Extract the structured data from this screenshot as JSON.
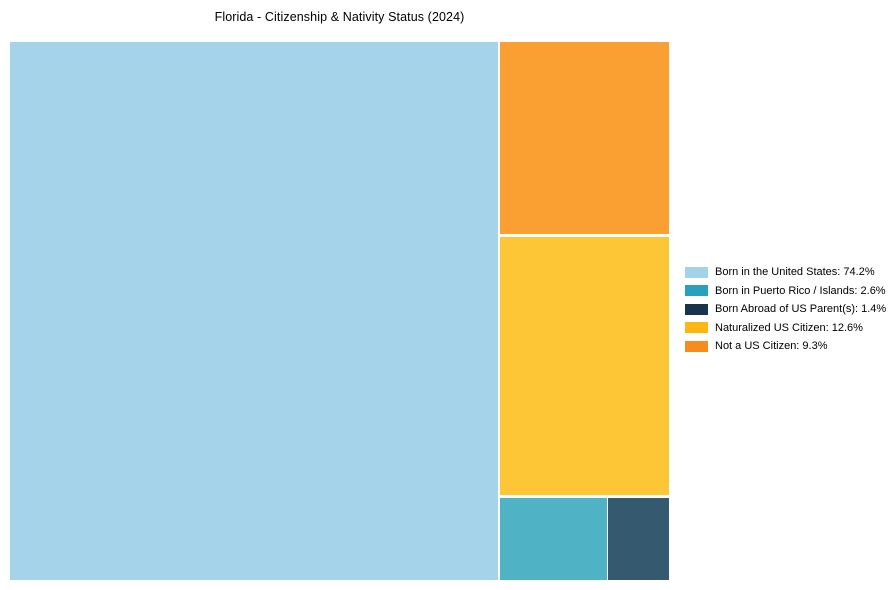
{
  "title": "Florida - Citizenship & Nativity Status (2024)",
  "chart_data": {
    "type": "treemap",
    "title": "Florida - Citizenship & Nativity Status (2024)",
    "unit": "percent",
    "total_pct": 100.1,
    "legend_position": "right",
    "grid": false,
    "items": [
      {
        "label": "Born in the United States",
        "value": 74.2,
        "legend_text": "Born in the United States: 74.2%",
        "tile_color": "#a5d3ea",
        "legend_color": "#a2d2ec"
      },
      {
        "label": "Born in Puerto Rico / Islands",
        "value": 2.6,
        "legend_text": "Born in Puerto Rico / Islands: 2.6%",
        "tile_color": "#4fb2c5",
        "legend_color": "#2ba0bd"
      },
      {
        "label": "Born Abroad of US Parent(s)",
        "value": 1.4,
        "legend_text": "Born Abroad of US Parent(s): 1.4%",
        "tile_color": "#35596e",
        "legend_color": "#16344a"
      },
      {
        "label": "Naturalized US Citizen",
        "value": 12.6,
        "legend_text": "Naturalized US Citizen: 12.6%",
        "tile_color": "#fdc637",
        "legend_color": "#fdb714"
      },
      {
        "label": "Not a US Citizen",
        "value": 9.3,
        "legend_text": "Not a US Citizen: 9.3%",
        "tile_color": "#faa032",
        "legend_color": "#f78c1e"
      }
    ]
  }
}
